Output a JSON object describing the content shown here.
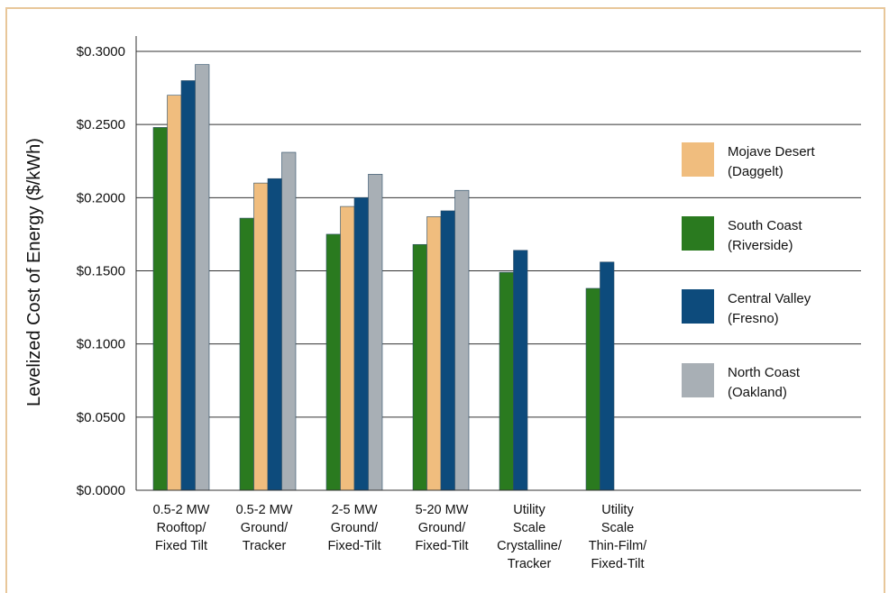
{
  "chart_data": {
    "type": "bar",
    "title": "",
    "ylabel": "Levelized Cost of Energy ($/kWh)",
    "xlabel": "",
    "ylim": [
      0,
      0.3
    ],
    "yticks": [
      "$0.0000",
      "$0.0500",
      "$0.1000",
      "$0.1500",
      "$0.2000",
      "$0.2500",
      "$0.3000"
    ],
    "ytick_values": [
      0,
      0.05,
      0.1,
      0.15,
      0.2,
      0.25,
      0.3
    ],
    "grid": true,
    "legend_position": "right",
    "categories": [
      [
        "0.5-2 MW",
        "Rooftop/",
        "Fixed Tilt"
      ],
      [
        "0.5-2 MW",
        "Ground/",
        "Tracker"
      ],
      [
        "2-5 MW",
        "Ground/",
        "Fixed-Tilt"
      ],
      [
        "5-20 MW",
        "Ground/",
        "Fixed-Tilt"
      ],
      [
        "Utility",
        "Scale",
        "Crystalline/",
        "Tracker"
      ],
      [
        "Utility",
        "Scale",
        "Thin-Film/",
        "Fixed-Tilt"
      ]
    ],
    "series": [
      {
        "name": [
          "South Coast",
          "(Riverside)"
        ],
        "color": "#2a7a1f",
        "values": [
          0.248,
          0.186,
          0.175,
          0.168,
          0.149,
          0.138
        ]
      },
      {
        "name": [
          "Mojave Desert",
          "(Daggelt)"
        ],
        "color": "#f0bd7e",
        "values": [
          0.27,
          0.21,
          0.194,
          0.187,
          null,
          null
        ]
      },
      {
        "name": [
          "Central Valley",
          "(Fresno)"
        ],
        "color": "#0d4b7c",
        "values": [
          0.28,
          0.213,
          0.2,
          0.191,
          0.164,
          0.156
        ]
      },
      {
        "name": [
          "North Coast",
          "(Oakland)"
        ],
        "color": "#a8afb5",
        "values": [
          0.291,
          0.231,
          0.216,
          0.205,
          null,
          null
        ]
      }
    ],
    "legend_order": [
      1,
      0,
      2,
      3
    ]
  }
}
